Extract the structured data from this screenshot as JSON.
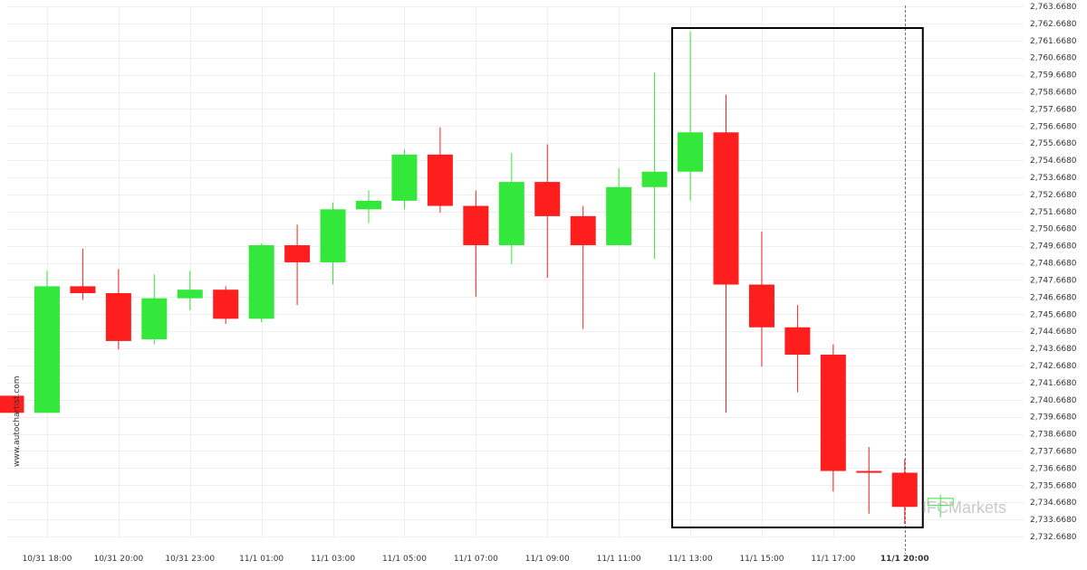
{
  "chart_data": {
    "type": "candlestick",
    "watermark": "www.autochartist.com",
    "brand_text": "IFCMarkets",
    "colors": {
      "up": "#33e83a",
      "down": "#ff1e1e",
      "grid": "#eeeeee",
      "box": "#000000",
      "text": "#333333"
    },
    "y_ticks": [
      "2,732.6680",
      "2,733.6680",
      "2,734.6680",
      "2,735.6680",
      "2,736.6680",
      "2,737.6680",
      "2,738.6680",
      "2,739.6680",
      "2,740.6680",
      "2,741.6680",
      "2,742.6680",
      "2,743.6680",
      "2,744.6680",
      "2,745.6680",
      "2,746.6680",
      "2,747.6680",
      "2,748.6680",
      "2,749.6680",
      "2,750.6680",
      "2,751.6680",
      "2,752.6680",
      "2,753.6680",
      "2,754.6680",
      "2,755.6680",
      "2,756.6680",
      "2,757.6680",
      "2,758.6680",
      "2,759.6680",
      "2,760.6680",
      "2,761.6680",
      "2,762.6680",
      "2,763.6680"
    ],
    "ylim": [
      2732.668,
      2763.668
    ],
    "x_tick_labels": [
      {
        "label": "10/31 18:00",
        "index": 1
      },
      {
        "label": "10/31 20:00",
        "index": 3
      },
      {
        "label": "10/31 23:00",
        "index": 5
      },
      {
        "label": "11/1 01:00",
        "index": 7
      },
      {
        "label": "11/1 03:00",
        "index": 9
      },
      {
        "label": "11/1 05:00",
        "index": 11
      },
      {
        "label": "11/1 07:00",
        "index": 13
      },
      {
        "label": "11/1 09:00",
        "index": 15
      },
      {
        "label": "11/1 11:00",
        "index": 17
      },
      {
        "label": "11/1 13:00",
        "index": 19
      },
      {
        "label": "11/1 15:00",
        "index": 21
      },
      {
        "label": "11/1 17:00",
        "index": 23
      },
      {
        "label": "11/1 20:00",
        "index": 25,
        "bold": true
      }
    ],
    "candles": [
      {
        "o": 2740.9,
        "h": 2740.9,
        "l": 2739.9,
        "c": 2739.9
      },
      {
        "o": 2739.9,
        "h": 2748.2,
        "l": 2739.9,
        "c": 2747.3
      },
      {
        "o": 2747.3,
        "h": 2749.5,
        "l": 2746.5,
        "c": 2746.9
      },
      {
        "o": 2746.9,
        "h": 2748.3,
        "l": 2743.6,
        "c": 2744.1
      },
      {
        "o": 2744.2,
        "h": 2748.0,
        "l": 2743.9,
        "c": 2746.6
      },
      {
        "o": 2746.6,
        "h": 2748.2,
        "l": 2745.9,
        "c": 2747.1
      },
      {
        "o": 2747.1,
        "h": 2747.3,
        "l": 2745.1,
        "c": 2745.4
      },
      {
        "o": 2745.4,
        "h": 2749.8,
        "l": 2745.2,
        "c": 2749.7
      },
      {
        "o": 2749.7,
        "h": 2750.9,
        "l": 2746.2,
        "c": 2748.7
      },
      {
        "o": 2748.7,
        "h": 2752.2,
        "l": 2747.4,
        "c": 2751.8
      },
      {
        "o": 2751.8,
        "h": 2752.9,
        "l": 2751.0,
        "c": 2752.3
      },
      {
        "o": 2752.3,
        "h": 2755.3,
        "l": 2751.8,
        "c": 2755.0
      },
      {
        "o": 2755.0,
        "h": 2756.6,
        "l": 2751.6,
        "c": 2752.0
      },
      {
        "o": 2752.0,
        "h": 2752.9,
        "l": 2746.7,
        "c": 2749.7
      },
      {
        "o": 2749.7,
        "h": 2755.1,
        "l": 2748.6,
        "c": 2753.4
      },
      {
        "o": 2753.4,
        "h": 2755.6,
        "l": 2747.8,
        "c": 2751.4
      },
      {
        "o": 2751.4,
        "h": 2752.0,
        "l": 2744.8,
        "c": 2749.7
      },
      {
        "o": 2749.7,
        "h": 2754.2,
        "l": 2749.7,
        "c": 2753.1
      },
      {
        "o": 2753.1,
        "h": 2759.8,
        "l": 2748.9,
        "c": 2754.0
      },
      {
        "o": 2754.0,
        "h": 2762.2,
        "l": 2752.3,
        "c": 2756.3
      },
      {
        "o": 2756.3,
        "h": 2758.5,
        "l": 2739.9,
        "c": 2747.4
      },
      {
        "o": 2747.4,
        "h": 2750.5,
        "l": 2742.6,
        "c": 2744.9
      },
      {
        "o": 2744.9,
        "h": 2746.2,
        "l": 2741.1,
        "c": 2743.3
      },
      {
        "o": 2743.3,
        "h": 2743.9,
        "l": 2735.3,
        "c": 2736.5
      },
      {
        "o": 2736.5,
        "h": 2737.9,
        "l": 2734.0,
        "c": 2736.4
      },
      {
        "o": 2736.4,
        "h": 2737.2,
        "l": 2733.4,
        "c": 2734.4
      },
      {
        "o": 2734.5,
        "h": 2735.1,
        "l": 2733.8,
        "c": 2734.9
      }
    ],
    "highlight_range": {
      "start_index": 19,
      "end_index": 25,
      "top": 2762.4,
      "bottom": 2733.2
    },
    "current_index": 25
  }
}
